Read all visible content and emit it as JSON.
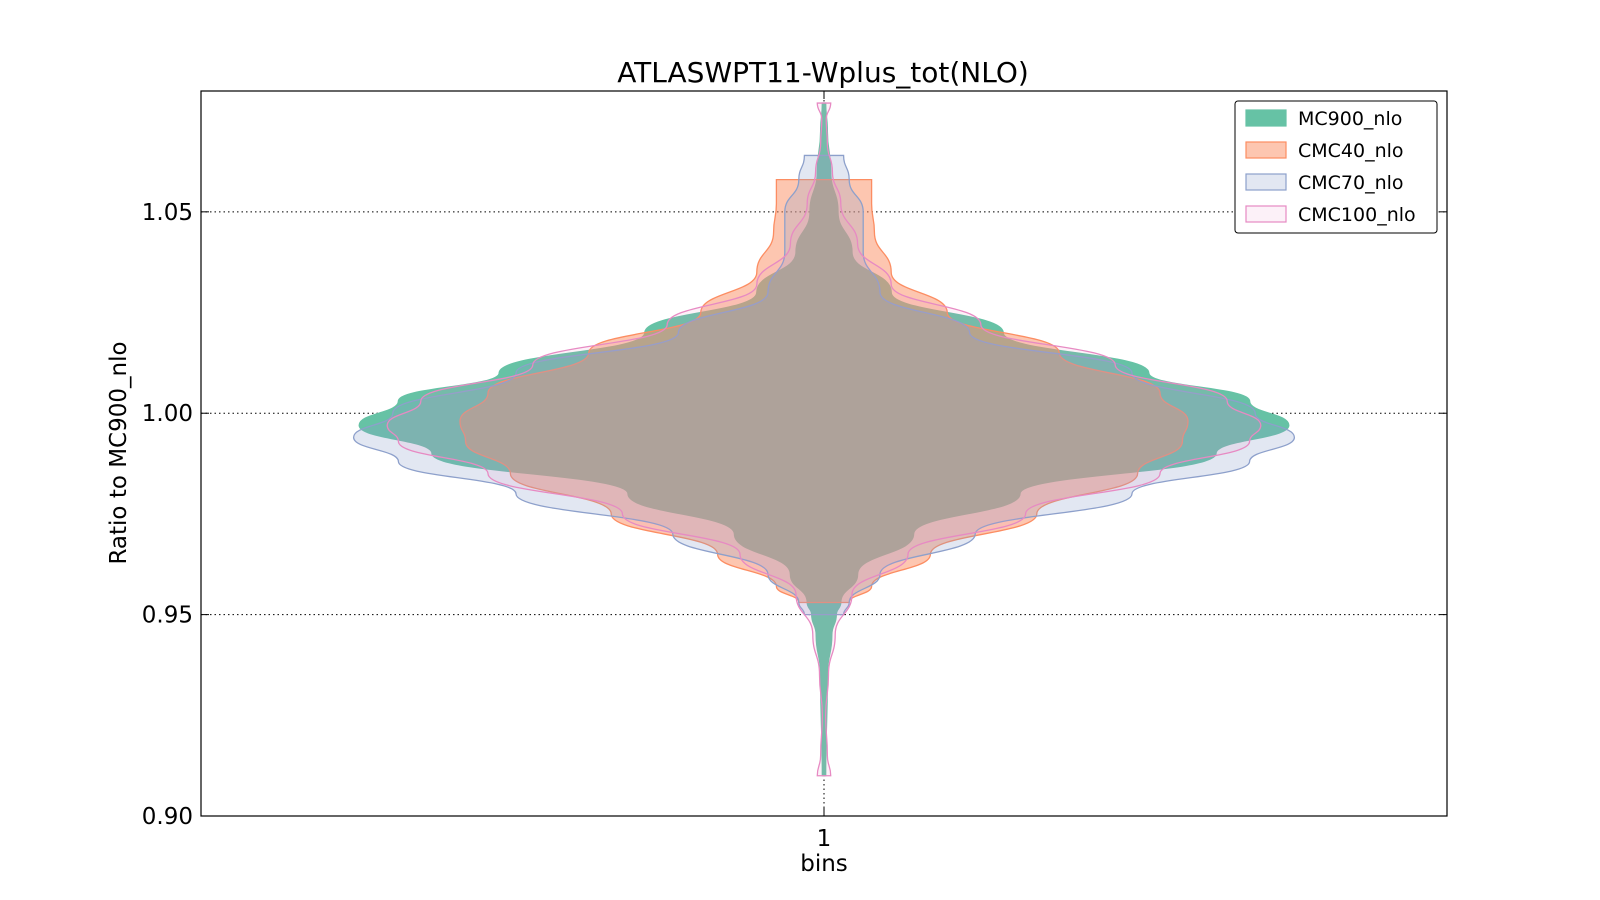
{
  "chart_data": {
    "type": "violin",
    "title": "ATLASWPT11-Wplus_tot(NLO)",
    "xlabel": "bins",
    "ylabel": "Ratio to MC900_nlo",
    "categories": [
      "1"
    ],
    "ylim": [
      0.9,
      1.08
    ],
    "yticks": [
      0.9,
      0.95,
      1.0,
      1.05
    ],
    "ytick_labels": [
      "0.90",
      "0.95",
      "1.00",
      "1.05"
    ],
    "grid": true,
    "legend_position": "top-right",
    "series": [
      {
        "name": "MC900_nlo",
        "fill": "#66c2a5",
        "stroke": "#66c2a5",
        "fill_opacity": 1.0,
        "y_min": 0.91,
        "y_max": 1.077,
        "half_width": [
          [
            0.91,
            0.003
          ],
          [
            0.935,
            0.006
          ],
          [
            0.945,
            0.014
          ],
          [
            0.95,
            0.022
          ],
          [
            0.953,
            0.03
          ],
          [
            0.96,
            0.06
          ],
          [
            0.97,
            0.16
          ],
          [
            0.98,
            0.35
          ],
          [
            0.99,
            0.7
          ],
          [
            0.997,
            0.83
          ],
          [
            1.003,
            0.76
          ],
          [
            1.01,
            0.58
          ],
          [
            1.02,
            0.32
          ],
          [
            1.03,
            0.12
          ],
          [
            1.04,
            0.05
          ],
          [
            1.05,
            0.025
          ],
          [
            1.06,
            0.012
          ],
          [
            1.07,
            0.006
          ],
          [
            1.077,
            0.003
          ]
        ]
      },
      {
        "name": "CMC40_nlo",
        "fill": "#fc8d62",
        "stroke": "#fc8d62",
        "fill_opacity": 0.5,
        "y_min": 0.953,
        "y_max": 1.058,
        "half_width": [
          [
            0.953,
            0.045
          ],
          [
            0.957,
            0.085
          ],
          [
            0.965,
            0.19
          ],
          [
            0.975,
            0.38
          ],
          [
            0.985,
            0.56
          ],
          [
            0.993,
            0.64
          ],
          [
            0.998,
            0.65
          ],
          [
            1.005,
            0.6
          ],
          [
            1.015,
            0.42
          ],
          [
            1.025,
            0.22
          ],
          [
            1.035,
            0.12
          ],
          [
            1.045,
            0.09
          ],
          [
            1.052,
            0.085
          ],
          [
            1.058,
            0.085
          ]
        ]
      },
      {
        "name": "CMC70_nlo",
        "fill": "#8da0cb",
        "stroke": "#8da0cb",
        "fill_opacity": 0.25,
        "y_min": 0.95,
        "y_max": 1.064,
        "half_width": [
          [
            0.95,
            0.035
          ],
          [
            0.953,
            0.045
          ],
          [
            0.96,
            0.1
          ],
          [
            0.97,
            0.27
          ],
          [
            0.98,
            0.55
          ],
          [
            0.988,
            0.76
          ],
          [
            0.994,
            0.84
          ],
          [
            1.0,
            0.77
          ],
          [
            1.01,
            0.55
          ],
          [
            1.02,
            0.26
          ],
          [
            1.03,
            0.1
          ],
          [
            1.04,
            0.07
          ],
          [
            1.05,
            0.07
          ],
          [
            1.058,
            0.045
          ],
          [
            1.064,
            0.035
          ]
        ]
      },
      {
        "name": "CMC100_nlo",
        "fill": "#e78ac3",
        "stroke": "#e78ac3",
        "fill_opacity": 0.12,
        "y_min": 0.91,
        "y_max": 1.077,
        "half_width": [
          [
            0.91,
            0.012
          ],
          [
            0.915,
            0.006
          ],
          [
            0.925,
            0.003
          ],
          [
            0.935,
            0.008
          ],
          [
            0.945,
            0.02
          ],
          [
            0.955,
            0.05
          ],
          [
            0.965,
            0.15
          ],
          [
            0.975,
            0.36
          ],
          [
            0.985,
            0.6
          ],
          [
            0.993,
            0.76
          ],
          [
            0.997,
            0.78
          ],
          [
            1.003,
            0.72
          ],
          [
            1.012,
            0.52
          ],
          [
            1.022,
            0.28
          ],
          [
            1.032,
            0.12
          ],
          [
            1.042,
            0.06
          ],
          [
            1.052,
            0.03
          ],
          [
            1.06,
            0.015
          ],
          [
            1.067,
            0.006
          ],
          [
            1.073,
            0.004
          ],
          [
            1.077,
            0.012
          ]
        ]
      }
    ]
  }
}
